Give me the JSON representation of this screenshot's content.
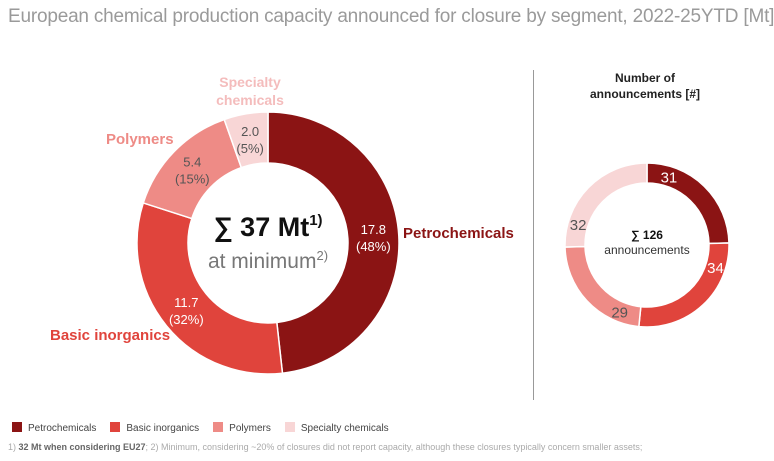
{
  "title": "European chemical production capacity announced for closure by segment, 2022-25YTD [Mt]",
  "colors": {
    "Petrochemicals": "#8b1414",
    "Basic inorganics": "#e0443c",
    "Polymers": "#ee8b86",
    "Specialty chemicals": "#f8d6d6"
  },
  "chart_data": [
    {
      "type": "pie",
      "variant": "donut",
      "categories": [
        "Petrochemicals",
        "Basic inorganics",
        "Polymers",
        "Specialty chemicals"
      ],
      "values": [
        17.8,
        11.7,
        5.4,
        2.0
      ],
      "value_labels": [
        "17.8",
        "11.7",
        "5.4",
        "2.0"
      ],
      "percent_labels": [
        "(48%)",
        "(32%)",
        "(15%)",
        "(5%)"
      ],
      "center_text": "∑ 37 Mt",
      "center_sup": "1)",
      "center_sub": "at minimum",
      "center_sub_sup": "2)"
    },
    {
      "type": "pie",
      "variant": "donut",
      "title": "Number of announcements [#]",
      "categories": [
        "Petrochemicals",
        "Basic inorganics",
        "Polymers",
        "Specialty chemicals"
      ],
      "values": [
        31,
        34,
        29,
        32
      ],
      "center_text": "∑ 126",
      "center_sub": "announcements"
    }
  ],
  "footnote": {
    "bold": "32 Mt when considering EU27",
    "prefix": "1) ",
    "rest": "; 2) Minimum, considering ~20% of closures did not report capacity, although these closures typically concern smaller assets;"
  }
}
